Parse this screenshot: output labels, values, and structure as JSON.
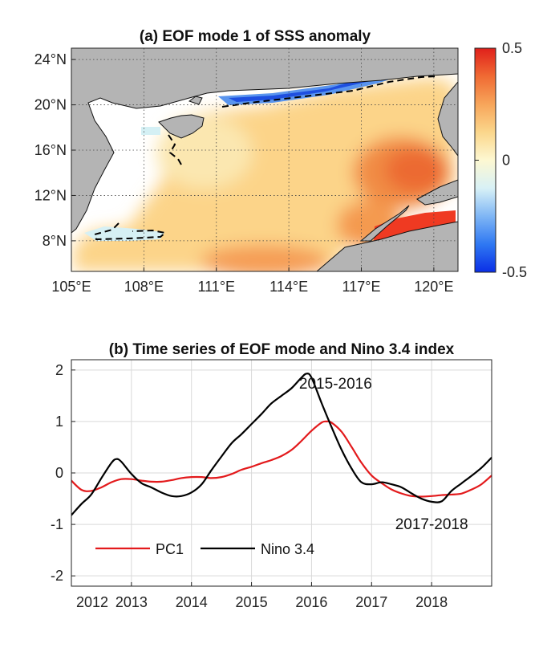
{
  "chart_data": [
    {
      "id": "a",
      "type": "heatmap",
      "title": "(a) EOF mode 1 of SSS anomaly",
      "xlim": [
        105,
        121
      ],
      "ylim": [
        5.3,
        25
      ],
      "x_ticks": [
        105,
        108,
        111,
        114,
        117,
        120
      ],
      "x_tick_labels": [
        "105°E",
        "108°E",
        "111°E",
        "114°E",
        "117°E",
        "120°E"
      ],
      "y_ticks": [
        8,
        12,
        16,
        20,
        24
      ],
      "y_tick_labels": [
        "8°N",
        "12°N",
        "16°N",
        "20°N",
        "24°N"
      ],
      "grid": true,
      "colorbar": {
        "range": [
          -0.5,
          0.5
        ],
        "tick_values": [
          0.5,
          0,
          -0.5
        ],
        "tick_labels": [
          "0.5",
          "0",
          "-0.5"
        ],
        "colors": [
          "#0a2ee6",
          "#2f78f2",
          "#7fb6f5",
          "#d8f1f6",
          "#fdf8d2",
          "#fbd68b",
          "#f7a55a",
          "#f06a33",
          "#e0201b"
        ]
      },
      "land_color": "#b4b4b4",
      "zero_contour": "dashed black",
      "value_hotspots": [
        {
          "lon": 118.5,
          "lat": 13.5,
          "value": 0.38
        },
        {
          "lon": 119.0,
          "lat": 8.3,
          "value": 0.48
        },
        {
          "lon": 115.0,
          "lat": 9.5,
          "value": 0.25
        },
        {
          "lon": 113.0,
          "lat": 6.0,
          "value": 0.32
        },
        {
          "lon": 113.5,
          "lat": 17.5,
          "value": 0.12
        },
        {
          "lon": 116.0,
          "lat": 21.2,
          "value": 0.15
        },
        {
          "lon": 117.0,
          "lat": 22.7,
          "value": -0.35
        },
        {
          "lon": 113.0,
          "lat": 20.8,
          "value": -0.3
        },
        {
          "lon": 107.3,
          "lat": 8.3,
          "value": -0.05
        },
        {
          "lon": 109.0,
          "lat": 17.0,
          "value": -0.05
        },
        {
          "lon": 107.5,
          "lat": 10.5,
          "value": 0.1
        }
      ]
    },
    {
      "id": "b",
      "type": "line",
      "title": "(b) Time series of EOF mode and Nino 3.4 index",
      "xlim": [
        2012,
        2019
      ],
      "ylim": [
        -2.2,
        2.2
      ],
      "x_ticks": [
        2012,
        2013,
        2014,
        2015,
        2016,
        2017,
        2018
      ],
      "x_tick_labels": [
        "2012",
        "2013",
        "2014",
        "2015",
        "2016",
        "2017",
        "2018"
      ],
      "y_ticks": [
        2,
        1,
        0,
        -1,
        -2
      ],
      "y_tick_labels": [
        "2",
        "1",
        "0",
        "-1",
        "-2"
      ],
      "grid": true,
      "legend_position": "bottom-left",
      "series": [
        {
          "name": "PC1",
          "color": "#e31a1c",
          "x": [
            2012.0,
            2012.17,
            2012.33,
            2012.5,
            2012.67,
            2012.83,
            2013.0,
            2013.17,
            2013.33,
            2013.5,
            2013.67,
            2013.83,
            2014.0,
            2014.17,
            2014.33,
            2014.5,
            2014.67,
            2014.83,
            2015.0,
            2015.17,
            2015.33,
            2015.5,
            2015.67,
            2015.83,
            2016.0,
            2016.17,
            2016.25,
            2016.33,
            2016.5,
            2016.67,
            2016.83,
            2017.0,
            2017.17,
            2017.33,
            2017.5,
            2017.67,
            2017.83,
            2018.0,
            2018.17,
            2018.33,
            2018.5,
            2018.67,
            2018.83,
            2019.0
          ],
          "values": [
            -0.15,
            -0.33,
            -0.35,
            -0.28,
            -0.18,
            -0.12,
            -0.12,
            -0.15,
            -0.17,
            -0.17,
            -0.14,
            -0.1,
            -0.08,
            -0.08,
            -0.1,
            -0.08,
            -0.02,
            0.06,
            0.12,
            0.19,
            0.25,
            0.33,
            0.45,
            0.62,
            0.82,
            0.98,
            1.0,
            0.98,
            0.8,
            0.5,
            0.2,
            -0.05,
            -0.2,
            -0.32,
            -0.4,
            -0.45,
            -0.46,
            -0.45,
            -0.43,
            -0.42,
            -0.4,
            -0.32,
            -0.22,
            -0.05
          ]
        },
        {
          "name": "Nino 3.4",
          "color": "#000000",
          "x": [
            2012.0,
            2012.17,
            2012.33,
            2012.5,
            2012.67,
            2012.75,
            2012.83,
            2013.0,
            2013.17,
            2013.33,
            2013.5,
            2013.67,
            2013.83,
            2014.0,
            2014.17,
            2014.33,
            2014.5,
            2014.67,
            2014.83,
            2015.0,
            2015.17,
            2015.33,
            2015.5,
            2015.67,
            2015.83,
            2015.92,
            2016.0,
            2016.17,
            2016.33,
            2016.5,
            2016.67,
            2016.83,
            2017.0,
            2017.17,
            2017.33,
            2017.5,
            2017.67,
            2017.83,
            2018.0,
            2018.17,
            2018.33,
            2018.5,
            2018.67,
            2018.83,
            2019.0
          ],
          "values": [
            -0.82,
            -0.6,
            -0.42,
            -0.1,
            0.2,
            0.27,
            0.22,
            -0.02,
            -0.2,
            -0.28,
            -0.38,
            -0.45,
            -0.45,
            -0.38,
            -0.22,
            0.05,
            0.32,
            0.58,
            0.75,
            0.95,
            1.15,
            1.35,
            1.5,
            1.65,
            1.85,
            1.93,
            1.85,
            1.35,
            0.9,
            0.45,
            0.08,
            -0.18,
            -0.22,
            -0.18,
            -0.22,
            -0.28,
            -0.4,
            -0.5,
            -0.56,
            -0.55,
            -0.35,
            -0.2,
            -0.05,
            0.1,
            0.3
          ]
        }
      ],
      "annotations": [
        {
          "text": "2015-2016",
          "x": 2016.4,
          "y": 1.75
        },
        {
          "text": "2017-2018",
          "x": 2018.0,
          "y": -0.98
        }
      ]
    }
  ]
}
